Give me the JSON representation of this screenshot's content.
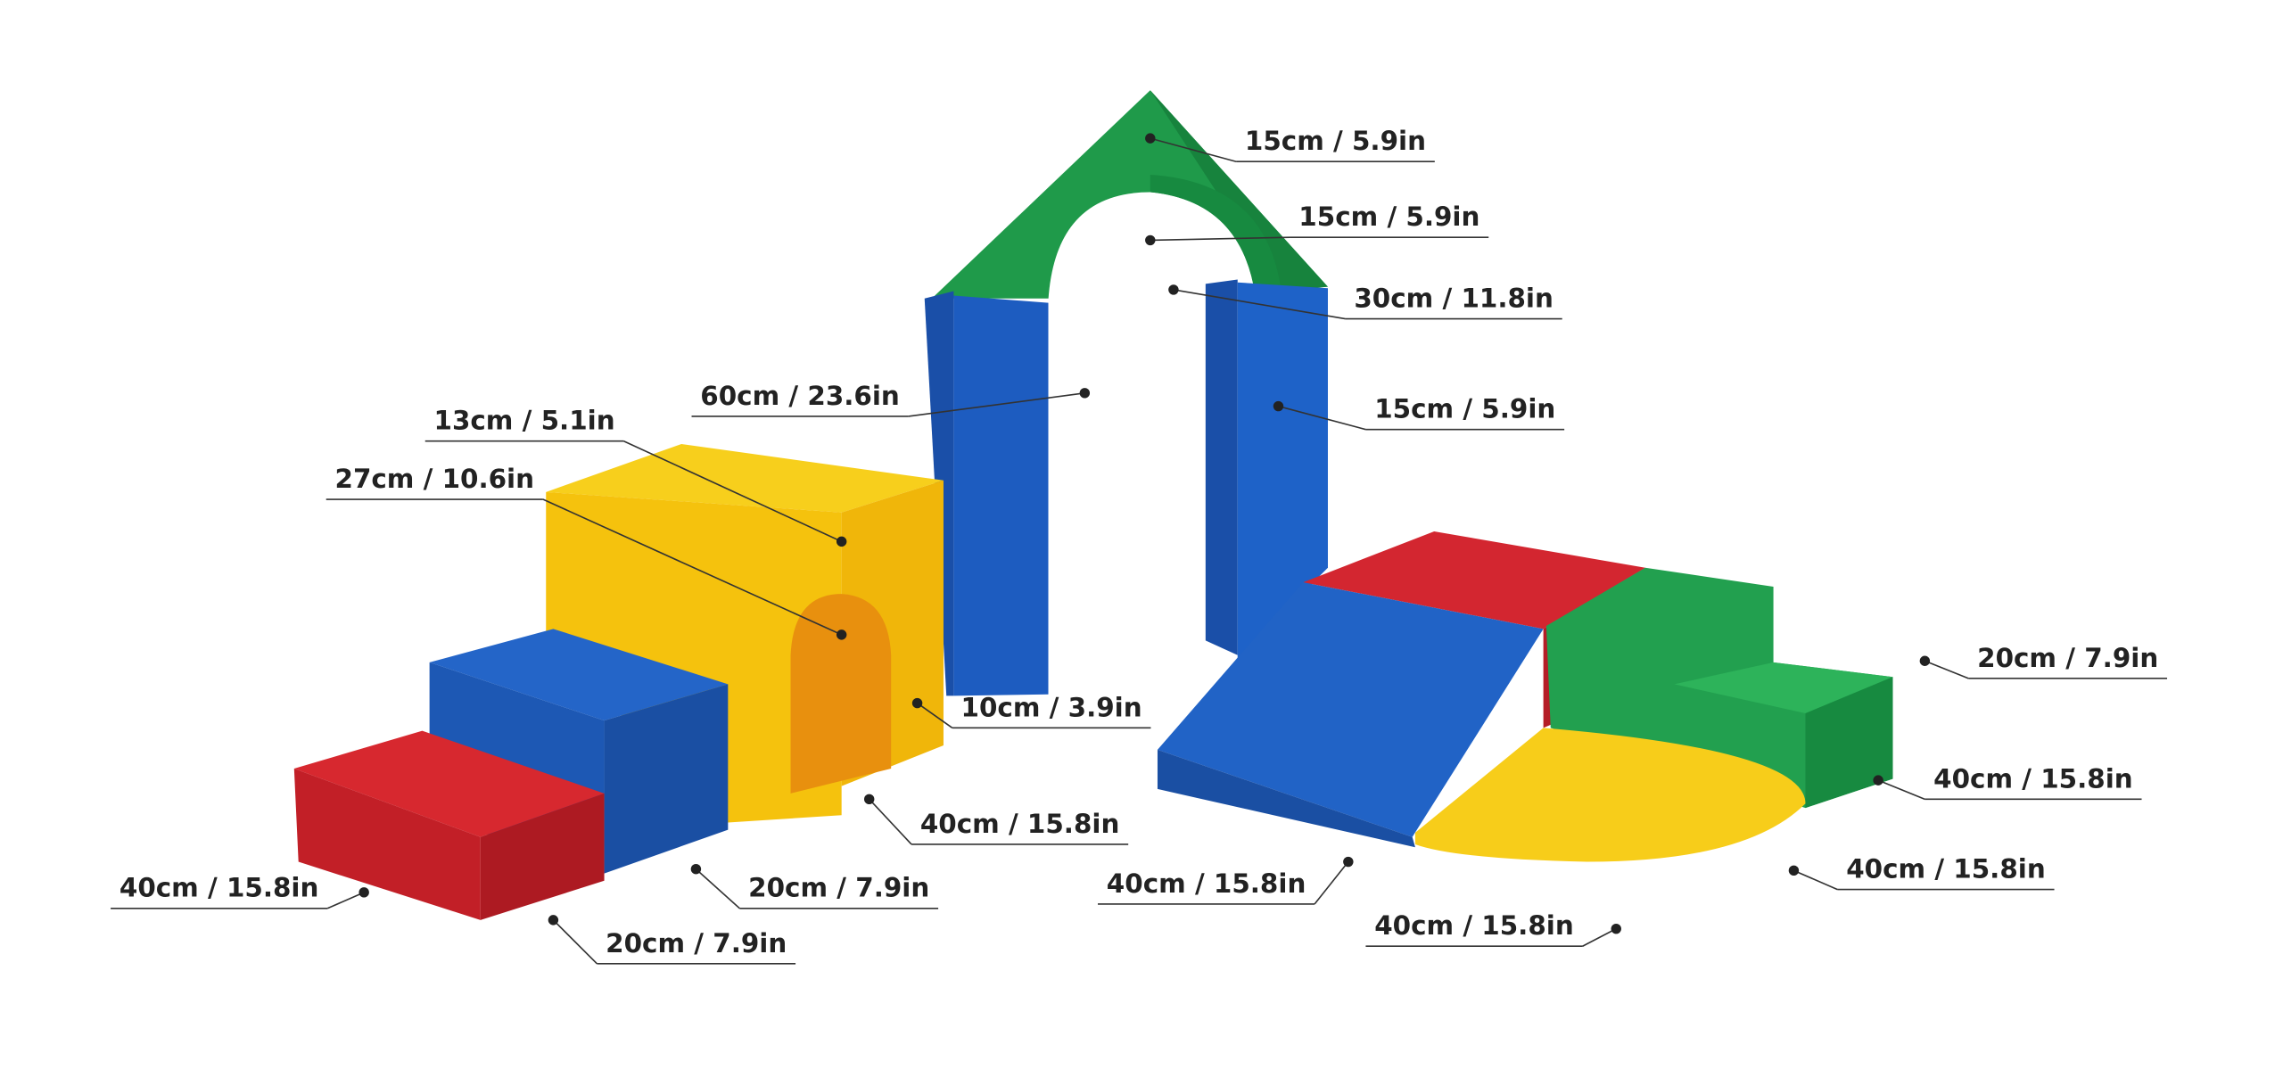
{
  "dimensions": [
    "15cm / 5.9in",
    "15cm / 5.9in",
    "30cm / 11.8in",
    "60cm / 23.6in",
    "15cm / 5.9in",
    "13cm / 5.1in",
    "27cm / 10.6in",
    "20cm / 7.9in",
    "10cm / 3.9in",
    "40cm / 15.8in",
    "40cm / 15.8in",
    "40cm / 15.8in",
    "40cm / 15.8in",
    "20cm / 7.9in",
    "40cm / 15.8in",
    "40cm / 15.8in",
    "20cm / 7.9in"
  ]
}
